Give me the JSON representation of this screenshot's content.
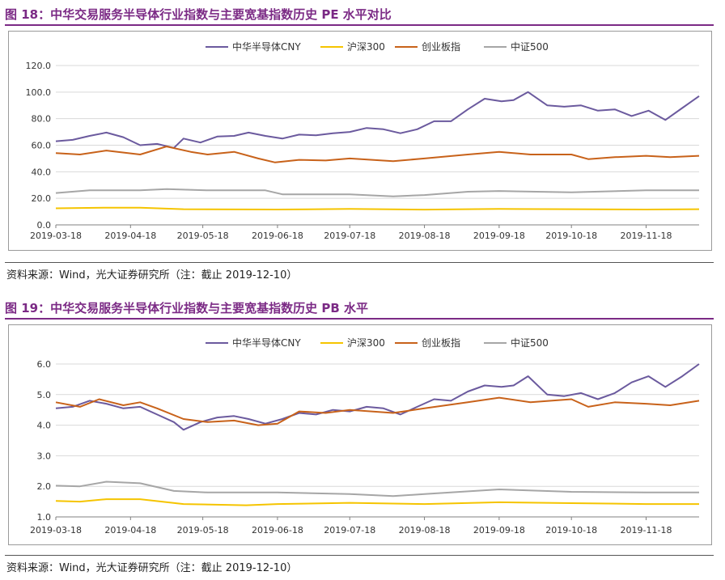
{
  "figures": [
    {
      "title": "图 18：中华交易服务半导体行业指数与主要宽基指数历史 PE 水平对比",
      "source": "资料来源：Wind，光大证券研究所（注：截止 2019-12-10）"
    },
    {
      "title": "图 19：中华交易服务半导体行业指数与主要宽基指数历史 PB 水平",
      "source": "资料来源：Wind，光大证券研究所（注：截止 2019-12-10）"
    }
  ],
  "chart_data": [
    {
      "type": "line",
      "title": "",
      "xlabel": "",
      "ylabel": "",
      "ylim": [
        0,
        120
      ],
      "yticks": [
        "0.0",
        "20.0",
        "40.0",
        "60.0",
        "80.0",
        "100.0",
        "120.0"
      ],
      "xticks": [
        "2019-03-18",
        "2019-04-18",
        "2019-05-18",
        "2019-06-18",
        "2019-07-18",
        "2019-08-18",
        "2019-09-18",
        "2019-10-18",
        "2019-11-18"
      ],
      "x_start": "2019-03-18",
      "x_end": "2019-12-10",
      "grid": "horizontal",
      "legend": "top",
      "series": [
        {
          "name": "中华半导体CNY",
          "color": "#6b5a9e",
          "points": [
            [
              "2019-03-18",
              63
            ],
            [
              "2019-03-25",
              64
            ],
            [
              "2019-04-01",
              67
            ],
            [
              "2019-04-08",
              69.5
            ],
            [
              "2019-04-15",
              66
            ],
            [
              "2019-04-22",
              60
            ],
            [
              "2019-04-29",
              61
            ],
            [
              "2019-05-06",
              58
            ],
            [
              "2019-05-10",
              65
            ],
            [
              "2019-05-17",
              62
            ],
            [
              "2019-05-24",
              66.5
            ],
            [
              "2019-05-31",
              67
            ],
            [
              "2019-06-06",
              69.5
            ],
            [
              "2019-06-13",
              67
            ],
            [
              "2019-06-20",
              65
            ],
            [
              "2019-06-27",
              68
            ],
            [
              "2019-07-04",
              67.5
            ],
            [
              "2019-07-11",
              69
            ],
            [
              "2019-07-18",
              70
            ],
            [
              "2019-07-25",
              73
            ],
            [
              "2019-08-01",
              72
            ],
            [
              "2019-08-08",
              69
            ],
            [
              "2019-08-15",
              72
            ],
            [
              "2019-08-22",
              78
            ],
            [
              "2019-08-29",
              78
            ],
            [
              "2019-09-05",
              87
            ],
            [
              "2019-09-12",
              95
            ],
            [
              "2019-09-19",
              93
            ],
            [
              "2019-09-24",
              94
            ],
            [
              "2019-09-30",
              100
            ],
            [
              "2019-10-08",
              90
            ],
            [
              "2019-10-15",
              89
            ],
            [
              "2019-10-22",
              90
            ],
            [
              "2019-10-29",
              86
            ],
            [
              "2019-11-05",
              87
            ],
            [
              "2019-11-12",
              82
            ],
            [
              "2019-11-19",
              86
            ],
            [
              "2019-11-26",
              79
            ],
            [
              "2019-12-03",
              88
            ],
            [
              "2019-12-10",
              97
            ]
          ]
        },
        {
          "name": "沪深300",
          "color": "#f5c400",
          "points": [
            [
              "2019-03-18",
              12.5
            ],
            [
              "2019-04-08",
              13
            ],
            [
              "2019-04-22",
              13
            ],
            [
              "2019-05-10",
              11.8
            ],
            [
              "2019-06-18",
              11.6
            ],
            [
              "2019-07-18",
              12
            ],
            [
              "2019-08-18",
              11.5
            ],
            [
              "2019-09-18",
              12
            ],
            [
              "2019-10-18",
              11.8
            ],
            [
              "2019-11-18",
              11.6
            ],
            [
              "2019-12-10",
              11.8
            ]
          ]
        },
        {
          "name": "创业板指",
          "color": "#c8621a",
          "points": [
            [
              "2019-03-18",
              54
            ],
            [
              "2019-03-28",
              53
            ],
            [
              "2019-04-08",
              56
            ],
            [
              "2019-04-22",
              53
            ],
            [
              "2019-05-03",
              59
            ],
            [
              "2019-05-13",
              55
            ],
            [
              "2019-05-20",
              53
            ],
            [
              "2019-05-31",
              55
            ],
            [
              "2019-06-10",
              50
            ],
            [
              "2019-06-17",
              47
            ],
            [
              "2019-06-27",
              49
            ],
            [
              "2019-07-08",
              48.5
            ],
            [
              "2019-07-18",
              50
            ],
            [
              "2019-08-05",
              48
            ],
            [
              "2019-08-18",
              50
            ],
            [
              "2019-09-05",
              53
            ],
            [
              "2019-09-18",
              55
            ],
            [
              "2019-10-01",
              53
            ],
            [
              "2019-10-18",
              53
            ],
            [
              "2019-10-25",
              49.5
            ],
            [
              "2019-11-05",
              51
            ],
            [
              "2019-11-18",
              52
            ],
            [
              "2019-11-28",
              51
            ],
            [
              "2019-12-10",
              52
            ]
          ]
        },
        {
          "name": "中证500",
          "color": "#a6a6a6",
          "points": [
            [
              "2019-03-18",
              24
            ],
            [
              "2019-04-01",
              26
            ],
            [
              "2019-04-22",
              26
            ],
            [
              "2019-05-03",
              27
            ],
            [
              "2019-05-20",
              26
            ],
            [
              "2019-06-13",
              26
            ],
            [
              "2019-06-20",
              23
            ],
            [
              "2019-07-18",
              23
            ],
            [
              "2019-08-05",
              21.5
            ],
            [
              "2019-08-18",
              22.5
            ],
            [
              "2019-09-05",
              25
            ],
            [
              "2019-09-18",
              25.5
            ],
            [
              "2019-10-18",
              24.5
            ],
            [
              "2019-11-18",
              26
            ],
            [
              "2019-12-10",
              26
            ]
          ]
        }
      ]
    },
    {
      "type": "line",
      "title": "",
      "xlabel": "",
      "ylabel": "",
      "ylim": [
        1.0,
        6.0
      ],
      "yticks": [
        "1.0",
        "2.0",
        "3.0",
        "4.0",
        "5.0",
        "6.0"
      ],
      "xticks": [
        "2019-03-18",
        "2019-04-18",
        "2019-05-18",
        "2019-06-18",
        "2019-07-18",
        "2019-08-18",
        "2019-09-18",
        "2019-10-18",
        "2019-11-18"
      ],
      "x_start": "2019-03-18",
      "x_end": "2019-12-10",
      "grid": "horizontal",
      "legend": "top",
      "series": [
        {
          "name": "中华半导体CNY",
          "color": "#6b5a9e",
          "points": [
            [
              "2019-03-18",
              4.55
            ],
            [
              "2019-03-25",
              4.6
            ],
            [
              "2019-04-01",
              4.8
            ],
            [
              "2019-04-08",
              4.7
            ],
            [
              "2019-04-15",
              4.55
            ],
            [
              "2019-04-22",
              4.6
            ],
            [
              "2019-04-29",
              4.35
            ],
            [
              "2019-05-06",
              4.1
            ],
            [
              "2019-05-10",
              3.85
            ],
            [
              "2019-05-17",
              4.1
            ],
            [
              "2019-05-24",
              4.25
            ],
            [
              "2019-05-31",
              4.3
            ],
            [
              "2019-06-06",
              4.2
            ],
            [
              "2019-06-13",
              4.05
            ],
            [
              "2019-06-20",
              4.2
            ],
            [
              "2019-06-27",
              4.4
            ],
            [
              "2019-07-04",
              4.35
            ],
            [
              "2019-07-11",
              4.5
            ],
            [
              "2019-07-18",
              4.45
            ],
            [
              "2019-07-25",
              4.6
            ],
            [
              "2019-08-01",
              4.55
            ],
            [
              "2019-08-08",
              4.35
            ],
            [
              "2019-08-15",
              4.6
            ],
            [
              "2019-08-22",
              4.85
            ],
            [
              "2019-08-29",
              4.8
            ],
            [
              "2019-09-05",
              5.1
            ],
            [
              "2019-09-12",
              5.3
            ],
            [
              "2019-09-19",
              5.25
            ],
            [
              "2019-09-24",
              5.3
            ],
            [
              "2019-09-30",
              5.6
            ],
            [
              "2019-10-08",
              5.0
            ],
            [
              "2019-10-15",
              4.95
            ],
            [
              "2019-10-22",
              5.05
            ],
            [
              "2019-10-29",
              4.85
            ],
            [
              "2019-11-05",
              5.05
            ],
            [
              "2019-11-12",
              5.4
            ],
            [
              "2019-11-19",
              5.6
            ],
            [
              "2019-11-26",
              5.25
            ],
            [
              "2019-12-03",
              5.6
            ],
            [
              "2019-12-10",
              6.0
            ]
          ]
        },
        {
          "name": "沪深300",
          "color": "#f5c400",
          "points": [
            [
              "2019-03-18",
              1.52
            ],
            [
              "2019-03-28",
              1.5
            ],
            [
              "2019-04-08",
              1.58
            ],
            [
              "2019-04-22",
              1.58
            ],
            [
              "2019-05-10",
              1.42
            ],
            [
              "2019-06-05",
              1.38
            ],
            [
              "2019-06-18",
              1.42
            ],
            [
              "2019-07-18",
              1.46
            ],
            [
              "2019-08-18",
              1.42
            ],
            [
              "2019-09-18",
              1.48
            ],
            [
              "2019-10-18",
              1.45
            ],
            [
              "2019-11-18",
              1.42
            ],
            [
              "2019-12-10",
              1.42
            ]
          ]
        },
        {
          "name": "创业板指",
          "color": "#c8621a",
          "points": [
            [
              "2019-03-18",
              4.75
            ],
            [
              "2019-03-28",
              4.6
            ],
            [
              "2019-04-05",
              4.85
            ],
            [
              "2019-04-15",
              4.65
            ],
            [
              "2019-04-22",
              4.75
            ],
            [
              "2019-04-29",
              4.55
            ],
            [
              "2019-05-10",
              4.2
            ],
            [
              "2019-05-20",
              4.1
            ],
            [
              "2019-05-31",
              4.15
            ],
            [
              "2019-06-10",
              4.0
            ],
            [
              "2019-06-18",
              4.05
            ],
            [
              "2019-06-27",
              4.45
            ],
            [
              "2019-07-08",
              4.4
            ],
            [
              "2019-07-18",
              4.5
            ],
            [
              "2019-08-05",
              4.4
            ],
            [
              "2019-08-18",
              4.55
            ],
            [
              "2019-09-05",
              4.75
            ],
            [
              "2019-09-18",
              4.9
            ],
            [
              "2019-10-01",
              4.75
            ],
            [
              "2019-10-18",
              4.85
            ],
            [
              "2019-10-25",
              4.6
            ],
            [
              "2019-11-05",
              4.75
            ],
            [
              "2019-11-18",
              4.7
            ],
            [
              "2019-11-28",
              4.65
            ],
            [
              "2019-12-10",
              4.8
            ]
          ]
        },
        {
          "name": "中证500",
          "color": "#a6a6a6",
          "points": [
            [
              "2019-03-18",
              2.02
            ],
            [
              "2019-03-28",
              2.0
            ],
            [
              "2019-04-08",
              2.15
            ],
            [
              "2019-04-22",
              2.1
            ],
            [
              "2019-05-06",
              1.85
            ],
            [
              "2019-05-20",
              1.8
            ],
            [
              "2019-06-18",
              1.8
            ],
            [
              "2019-07-18",
              1.75
            ],
            [
              "2019-08-05",
              1.68
            ],
            [
              "2019-08-18",
              1.75
            ],
            [
              "2019-09-18",
              1.9
            ],
            [
              "2019-10-18",
              1.82
            ],
            [
              "2019-11-18",
              1.8
            ],
            [
              "2019-12-10",
              1.8
            ]
          ]
        }
      ]
    }
  ]
}
